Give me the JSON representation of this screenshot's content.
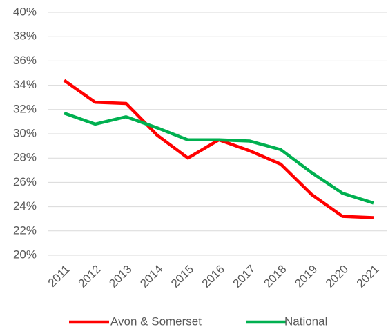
{
  "chart_data": {
    "type": "line",
    "categories": [
      "2011",
      "2012",
      "2013",
      "2014",
      "2015",
      "2016",
      "2017",
      "2018",
      "2019",
      "2020",
      "2021"
    ],
    "series": [
      {
        "name": "Avon & Somerset",
        "color": "#ff0000",
        "values": [
          34.4,
          32.6,
          32.5,
          29.9,
          28.0,
          29.5,
          28.6,
          27.5,
          25.0,
          23.2,
          23.1
        ]
      },
      {
        "name": "National",
        "color": "#00b050",
        "values": [
          31.7,
          30.8,
          31.4,
          30.5,
          29.5,
          29.5,
          29.4,
          28.7,
          26.8,
          25.1,
          24.3
        ]
      }
    ],
    "ylim": [
      20,
      40
    ],
    "yticks": [
      {
        "value": 20,
        "label": "20%"
      },
      {
        "value": 22,
        "label": "22%"
      },
      {
        "value": 24,
        "label": "24%"
      },
      {
        "value": 26,
        "label": "26%"
      },
      {
        "value": 28,
        "label": "28%"
      },
      {
        "value": 30,
        "label": "30%"
      },
      {
        "value": 32,
        "label": "32%"
      },
      {
        "value": 34,
        "label": "34%"
      },
      {
        "value": 36,
        "label": "36%"
      },
      {
        "value": 38,
        "label": "38%"
      },
      {
        "value": 40,
        "label": "40%"
      }
    ],
    "grid": true,
    "legend": "bottom"
  }
}
